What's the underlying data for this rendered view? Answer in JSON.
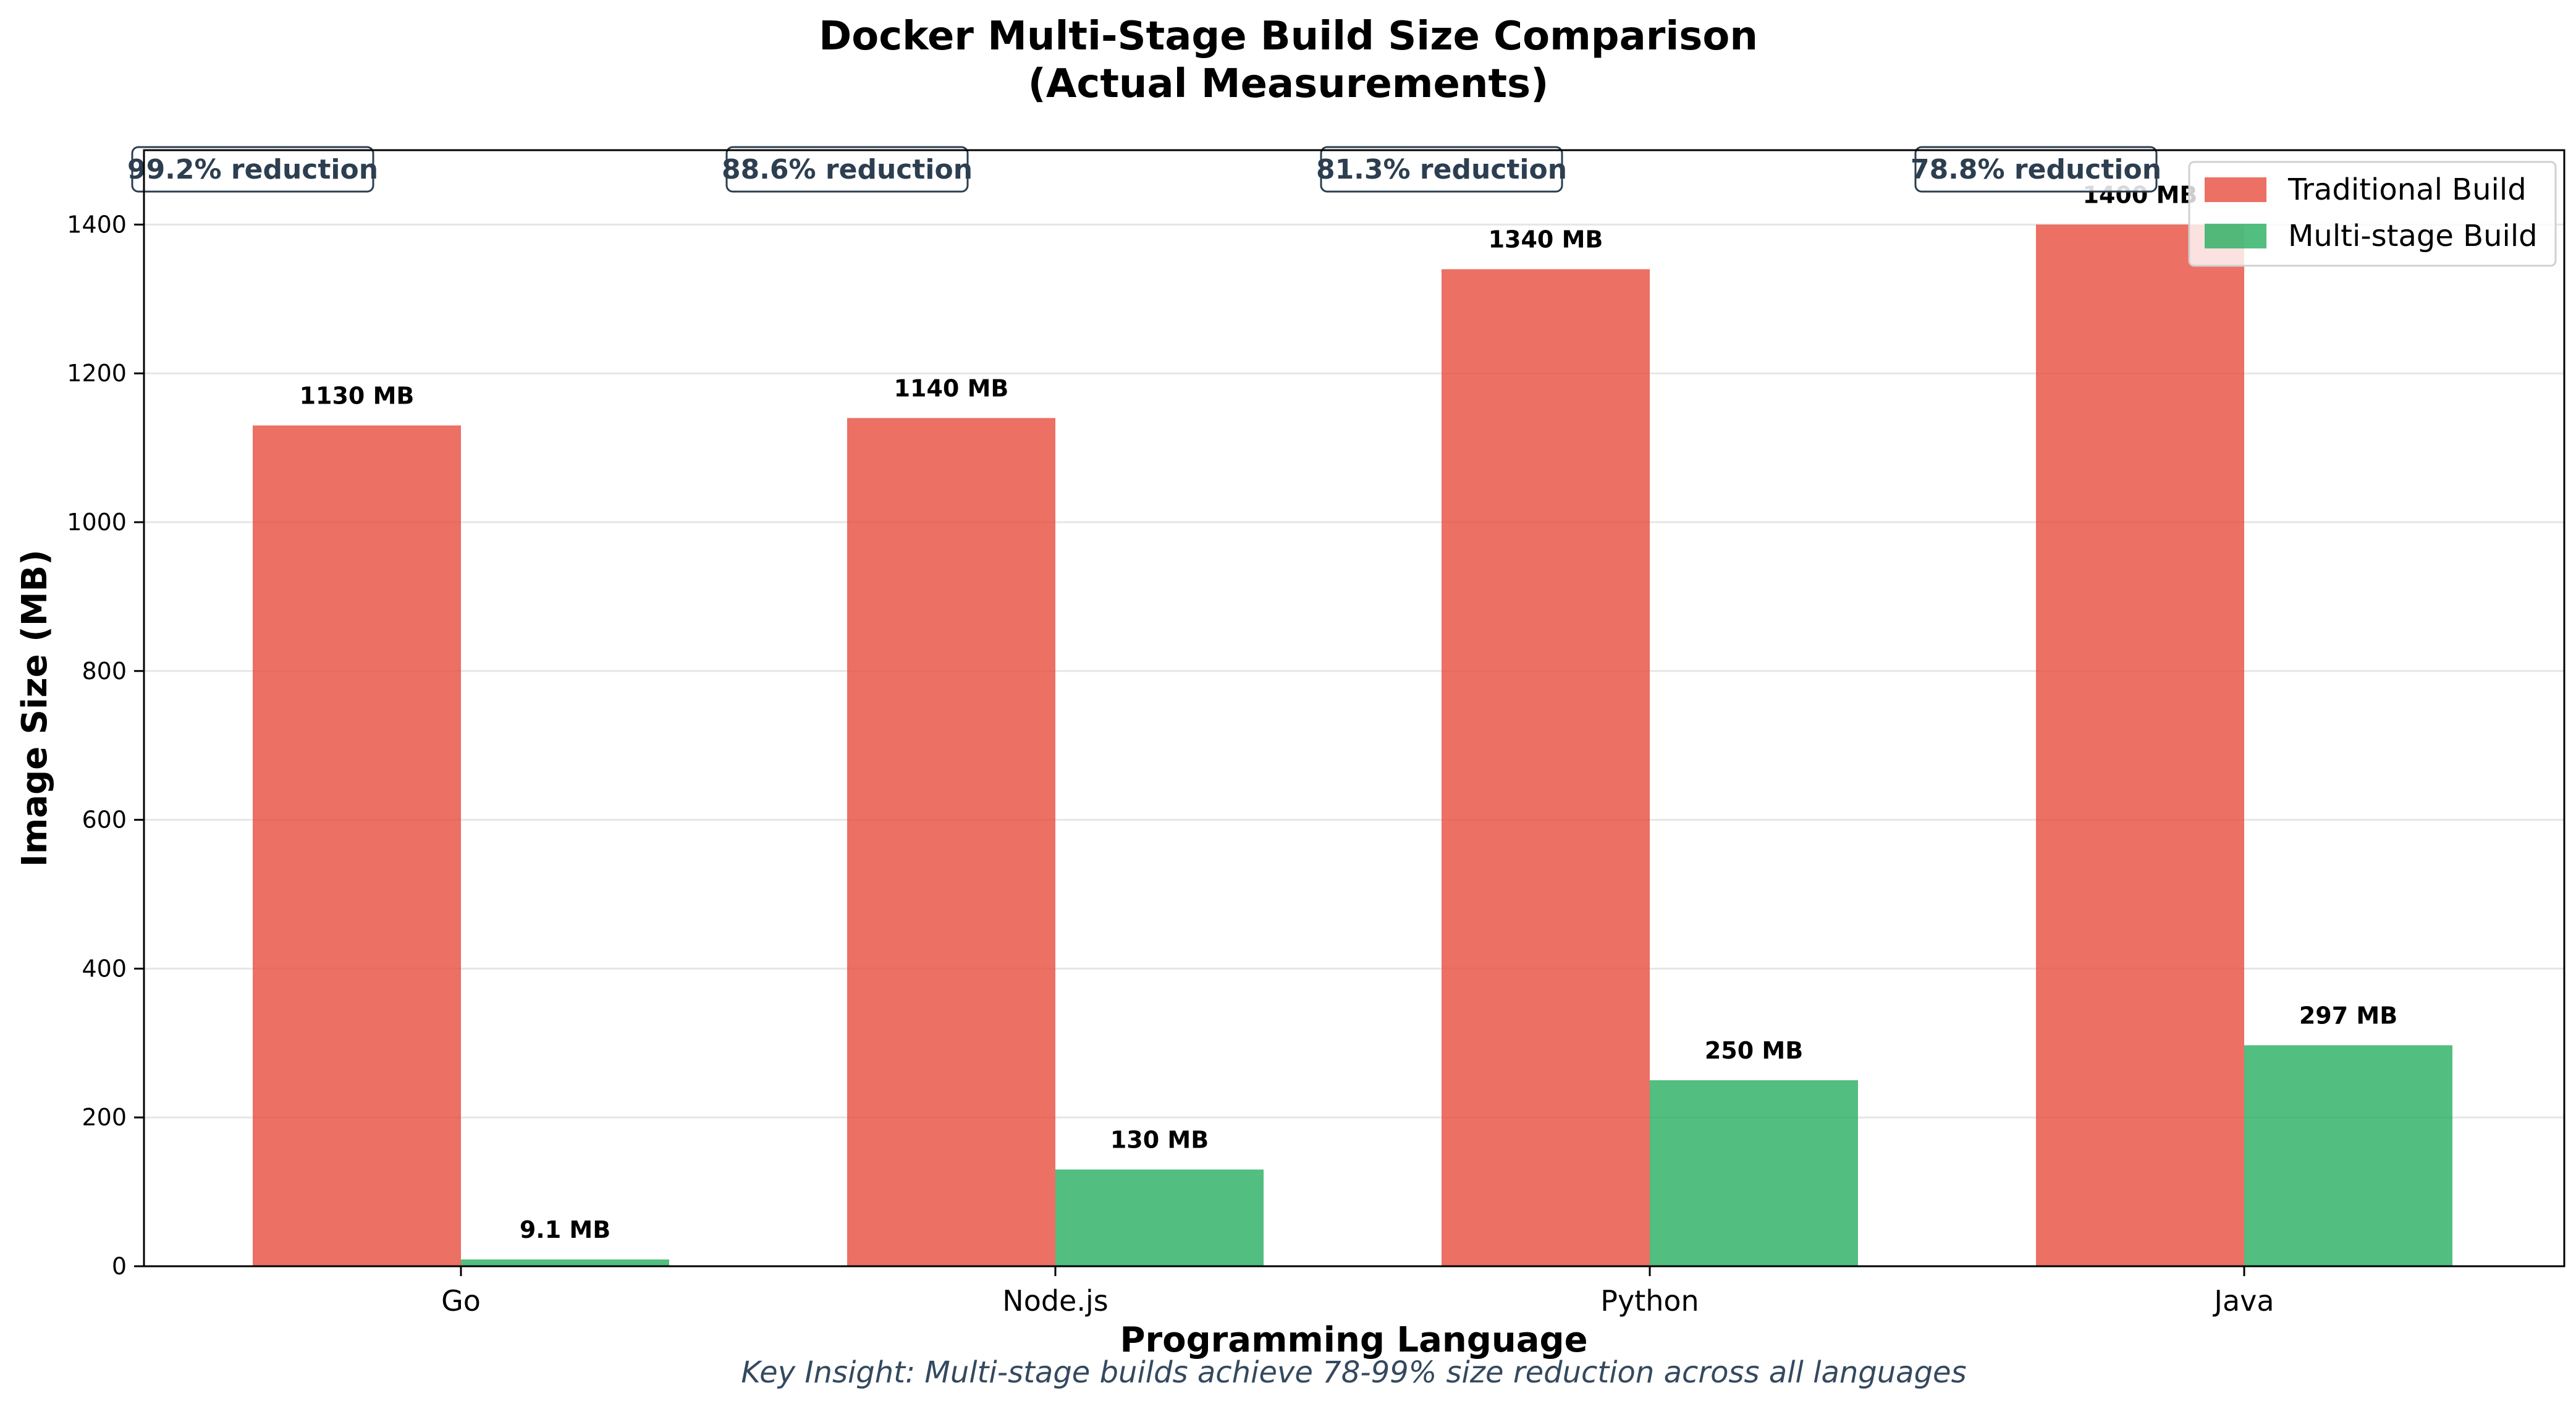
{
  "chart_data": {
    "type": "bar",
    "title": "Docker Multi-Stage Build Size Comparison",
    "subtitle": "(Actual Measurements)",
    "xlabel": "Programming Language",
    "ylabel": "Image Size (MB)",
    "ylim": [
      0,
      1500
    ],
    "yticks": [
      0,
      200,
      400,
      600,
      800,
      1000,
      1200,
      1400
    ],
    "grid": true,
    "legend_position": "top-right",
    "categories": [
      "Go",
      "Node.js",
      "Python",
      "Java"
    ],
    "series": [
      {
        "name": "Traditional Build",
        "color": "#e74c3c",
        "values": [
          1130,
          1140,
          1340,
          1400
        ],
        "labels": [
          "1130 MB",
          "1140 MB",
          "1340 MB",
          "1400 MB"
        ]
      },
      {
        "name": "Multi-stage Build",
        "color": "#27ae60",
        "values": [
          9.1,
          130,
          250,
          297
        ],
        "labels": [
          "9.1 MB",
          "130 MB",
          "250 MB",
          "297 MB"
        ]
      }
    ],
    "annotations": [
      "99.2% reduction",
      "88.6% reduction",
      "81.3% reduction",
      "78.8% reduction"
    ],
    "footnote": "Key Insight: Multi-stage builds achieve 78-99% size reduction across all languages"
  }
}
